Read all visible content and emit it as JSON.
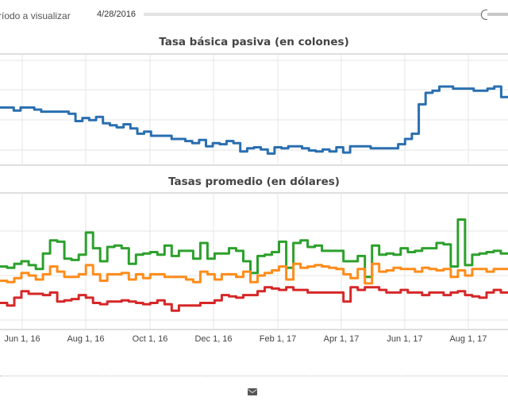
{
  "controls": {
    "period_label": "ríodo a visualizar",
    "start_date": "4/28/2016",
    "slider_position": 0.95
  },
  "footer": {
    "icon": "envelope-icon"
  },
  "colors": {
    "blue": "#2a6fb0",
    "green": "#2ca02c",
    "orange": "#ff8c1a",
    "red": "#d62728",
    "grid": "#e4e4e4"
  },
  "chart_data": [
    {
      "type": "line",
      "title": "Tasa básica pasiva (en colones)",
      "x_ticks": [],
      "ylim": [
        0,
        100
      ],
      "series": [
        {
          "name": "Tasa básica pasiva",
          "color": "#2a6fb0",
          "values": [
            52,
            52,
            49,
            52,
            52,
            50,
            48,
            48,
            48,
            48,
            46,
            39,
            42,
            40,
            43,
            37,
            35,
            33,
            36,
            32,
            27,
            29,
            25,
            25,
            25,
            22,
            22,
            20,
            18,
            21,
            15,
            18,
            17,
            20,
            18,
            10,
            13,
            14,
            12,
            8,
            14,
            13,
            15,
            15,
            13,
            11,
            10,
            12,
            10,
            14,
            9,
            15,
            15,
            15,
            13,
            13,
            13,
            13,
            17,
            22,
            27,
            55,
            66,
            68,
            72,
            72,
            70,
            70,
            70,
            68,
            68,
            70,
            72,
            62
          ]
        }
      ]
    },
    {
      "type": "line",
      "title": "Tasas promedio (en dólares)",
      "x_ticks": [
        "Jun 1, 16",
        "Aug 1, 16",
        "Oct 1, 16",
        "Dec 1, 16",
        "Feb 1, 17",
        "Apr 1, 17",
        "Jun 1, 17",
        "Aug 1, 17"
      ],
      "ylim": [
        0,
        100
      ],
      "series": [
        {
          "name": "green",
          "color": "#2ca02c",
          "values": [
            46,
            45,
            48,
            50,
            47,
            44,
            56,
            66,
            65,
            52,
            51,
            55,
            72,
            60,
            50,
            61,
            62,
            60,
            48,
            55,
            56,
            57,
            55,
            62,
            54,
            58,
            58,
            52,
            64,
            52,
            56,
            56,
            60,
            58,
            50,
            41,
            54,
            55,
            57,
            65,
            45,
            64,
            66,
            61,
            62,
            58,
            58,
            58,
            50,
            50,
            54,
            38,
            62,
            55,
            56,
            55,
            60,
            57,
            58,
            60,
            60,
            64,
            63,
            46,
            82,
            47,
            55,
            56,
            57,
            58,
            56
          ]
        },
        {
          "name": "orange",
          "color": "#ff8c1a",
          "values": [
            35,
            34,
            37,
            41,
            39,
            36,
            40,
            46,
            42,
            38,
            38,
            40,
            47,
            40,
            35,
            40,
            40,
            41,
            36,
            40,
            37,
            40,
            40,
            38,
            38,
            38,
            36,
            34,
            42,
            40,
            36,
            40,
            40,
            38,
            42,
            34,
            39,
            41,
            43,
            46,
            36,
            48,
            45,
            46,
            47,
            46,
            45,
            44,
            40,
            37,
            44,
            33,
            48,
            42,
            43,
            45,
            44,
            44,
            42,
            45,
            44,
            43,
            44,
            38,
            43,
            39,
            44,
            44,
            42,
            44,
            44
          ]
        },
        {
          "name": "red",
          "color": "#d62728",
          "values": [
            18,
            16,
            22,
            27,
            25,
            25,
            24,
            26,
            19,
            20,
            21,
            24,
            22,
            18,
            17,
            19,
            19,
            20,
            19,
            18,
            17,
            18,
            20,
            17,
            12,
            16,
            16,
            16,
            18,
            18,
            20,
            24,
            23,
            22,
            24,
            24,
            27,
            30,
            29,
            28,
            30,
            28,
            28,
            26,
            26,
            26,
            26,
            26,
            19,
            30,
            28,
            30,
            30,
            28,
            26,
            26,
            28,
            26,
            26,
            24,
            26,
            26,
            24,
            26,
            27,
            24,
            23,
            22,
            26,
            28,
            26
          ]
        }
      ]
    }
  ]
}
